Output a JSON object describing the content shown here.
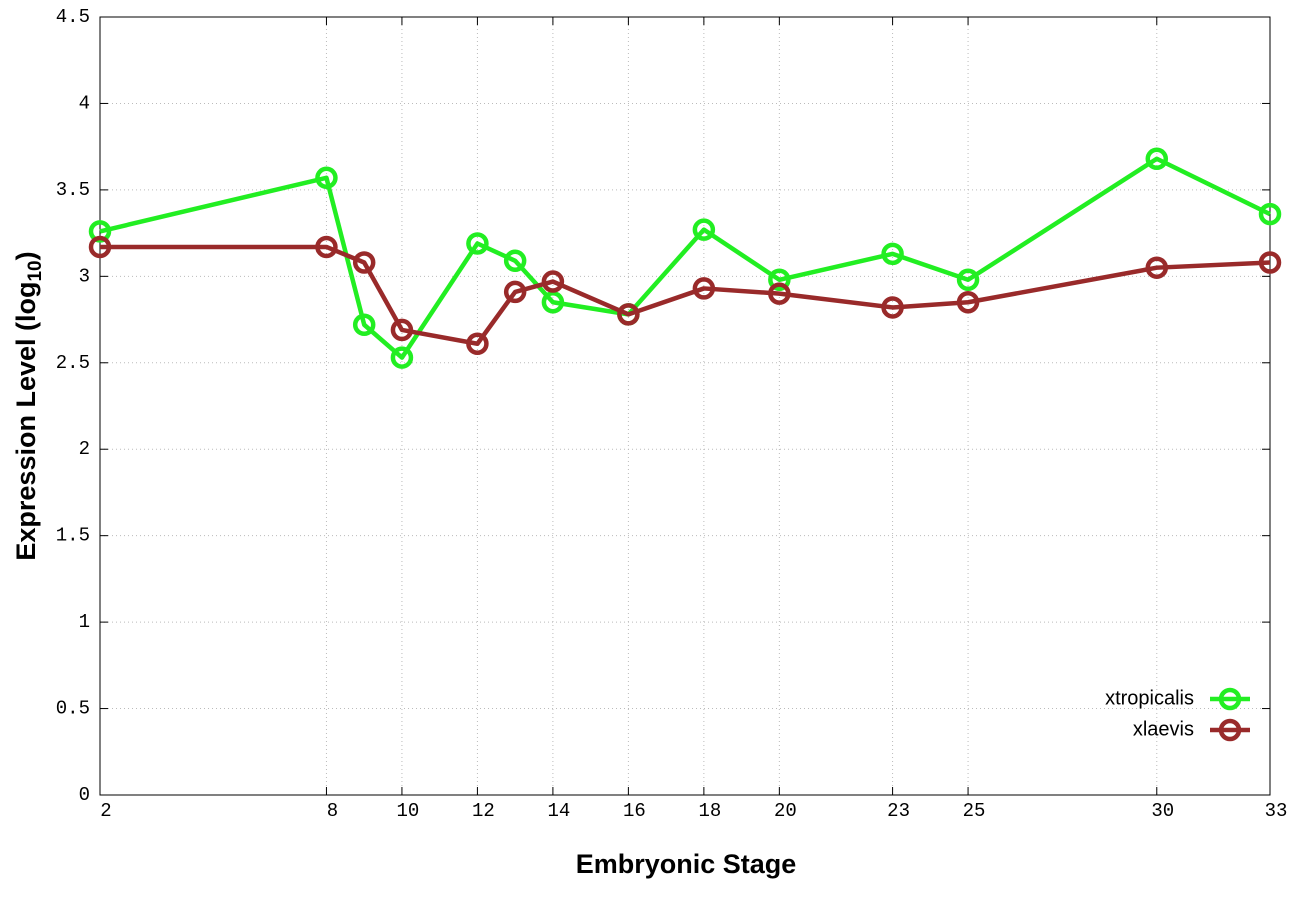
{
  "chart_data": {
    "type": "line",
    "xlabel": "Embryonic Stage",
    "ylabel": [
      "Expression Level (log",
      "10",
      ")"
    ],
    "x": [
      2,
      8,
      9,
      10,
      12,
      13,
      14,
      16,
      18,
      20,
      23,
      25,
      30,
      33
    ],
    "series": [
      {
        "name": "xtropicalis",
        "color": "#22ee22",
        "values": [
          3.26,
          3.57,
          2.72,
          2.53,
          3.19,
          3.09,
          2.85,
          2.78,
          3.27,
          2.98,
          3.13,
          2.98,
          3.68,
          3.36
        ]
      },
      {
        "name": "xlaevis",
        "color": "#992a2a",
        "values": [
          3.17,
          3.17,
          3.08,
          2.69,
          2.61,
          2.91,
          2.97,
          2.78,
          2.93,
          2.9,
          2.82,
          2.85,
          3.05,
          3.08
        ]
      }
    ],
    "xlim": [
      2,
      33
    ],
    "xticks": [
      2,
      8,
      10,
      12,
      14,
      16,
      18,
      20,
      23,
      25,
      30,
      33
    ],
    "ylim": [
      0,
      4.5
    ],
    "yticks": [
      0,
      0.5,
      1,
      1.5,
      2,
      2.5,
      3,
      3.5,
      4,
      4.5
    ],
    "grid": true,
    "legend": "bottom-right"
  }
}
